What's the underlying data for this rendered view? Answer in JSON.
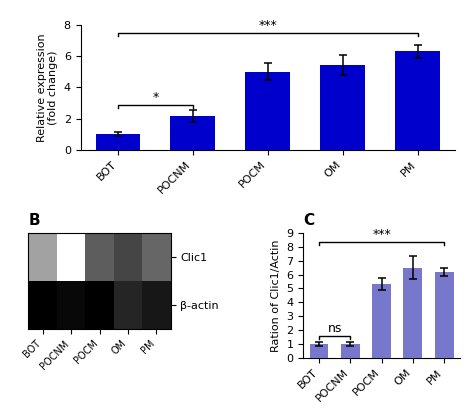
{
  "chart_data": [
    {
      "type": "bar",
      "categories": [
        "BOT",
        "POCNM",
        "POCM",
        "OM",
        "PM"
      ],
      "values": [
        1.0,
        2.15,
        5.0,
        5.45,
        6.3
      ],
      "errors": [
        0.12,
        0.38,
        0.55,
        0.65,
        0.42
      ],
      "color": "#0000CC",
      "ylabel": "Relative expression\n(fold change)",
      "ylim": [
        0,
        8
      ],
      "yticks": [
        0,
        2,
        4,
        6,
        8
      ],
      "annotations": [
        {
          "text": "*",
          "from": "BOT",
          "to": "POCNM",
          "y": 2.9
        },
        {
          "text": "***",
          "from": "BOT",
          "to": "PM",
          "y": 7.5
        }
      ]
    },
    {
      "type": "heatmap",
      "title": "B",
      "categories": [
        "BOT",
        "POCNM",
        "POCM",
        "OM",
        "PM"
      ],
      "rows": [
        "Clic1",
        "β-actin"
      ],
      "cells": [
        [
          0.55,
          0.35,
          0.7,
          0.75,
          0.68
        ],
        [
          0.9,
          0.88,
          0.9,
          0.82,
          0.85
        ]
      ]
    },
    {
      "type": "bar",
      "title": "C",
      "categories": [
        "BOT",
        "POCNM",
        "POCM",
        "OM",
        "PM"
      ],
      "values": [
        1.0,
        1.0,
        5.3,
        6.5,
        6.2
      ],
      "errors": [
        0.12,
        0.12,
        0.42,
        0.85,
        0.28
      ],
      "color": "#7777CC",
      "ylabel": "Ration of Clic1/Actin",
      "ylim": [
        0,
        9
      ],
      "yticks": [
        0,
        1,
        2,
        3,
        4,
        5,
        6,
        7,
        8,
        9
      ],
      "annotations": [
        {
          "text": "ns",
          "from": "BOT",
          "to": "POCNM",
          "y": 1.55
        },
        {
          "text": "***",
          "from": "BOT",
          "to": "PM",
          "y": 8.35
        }
      ]
    }
  ]
}
